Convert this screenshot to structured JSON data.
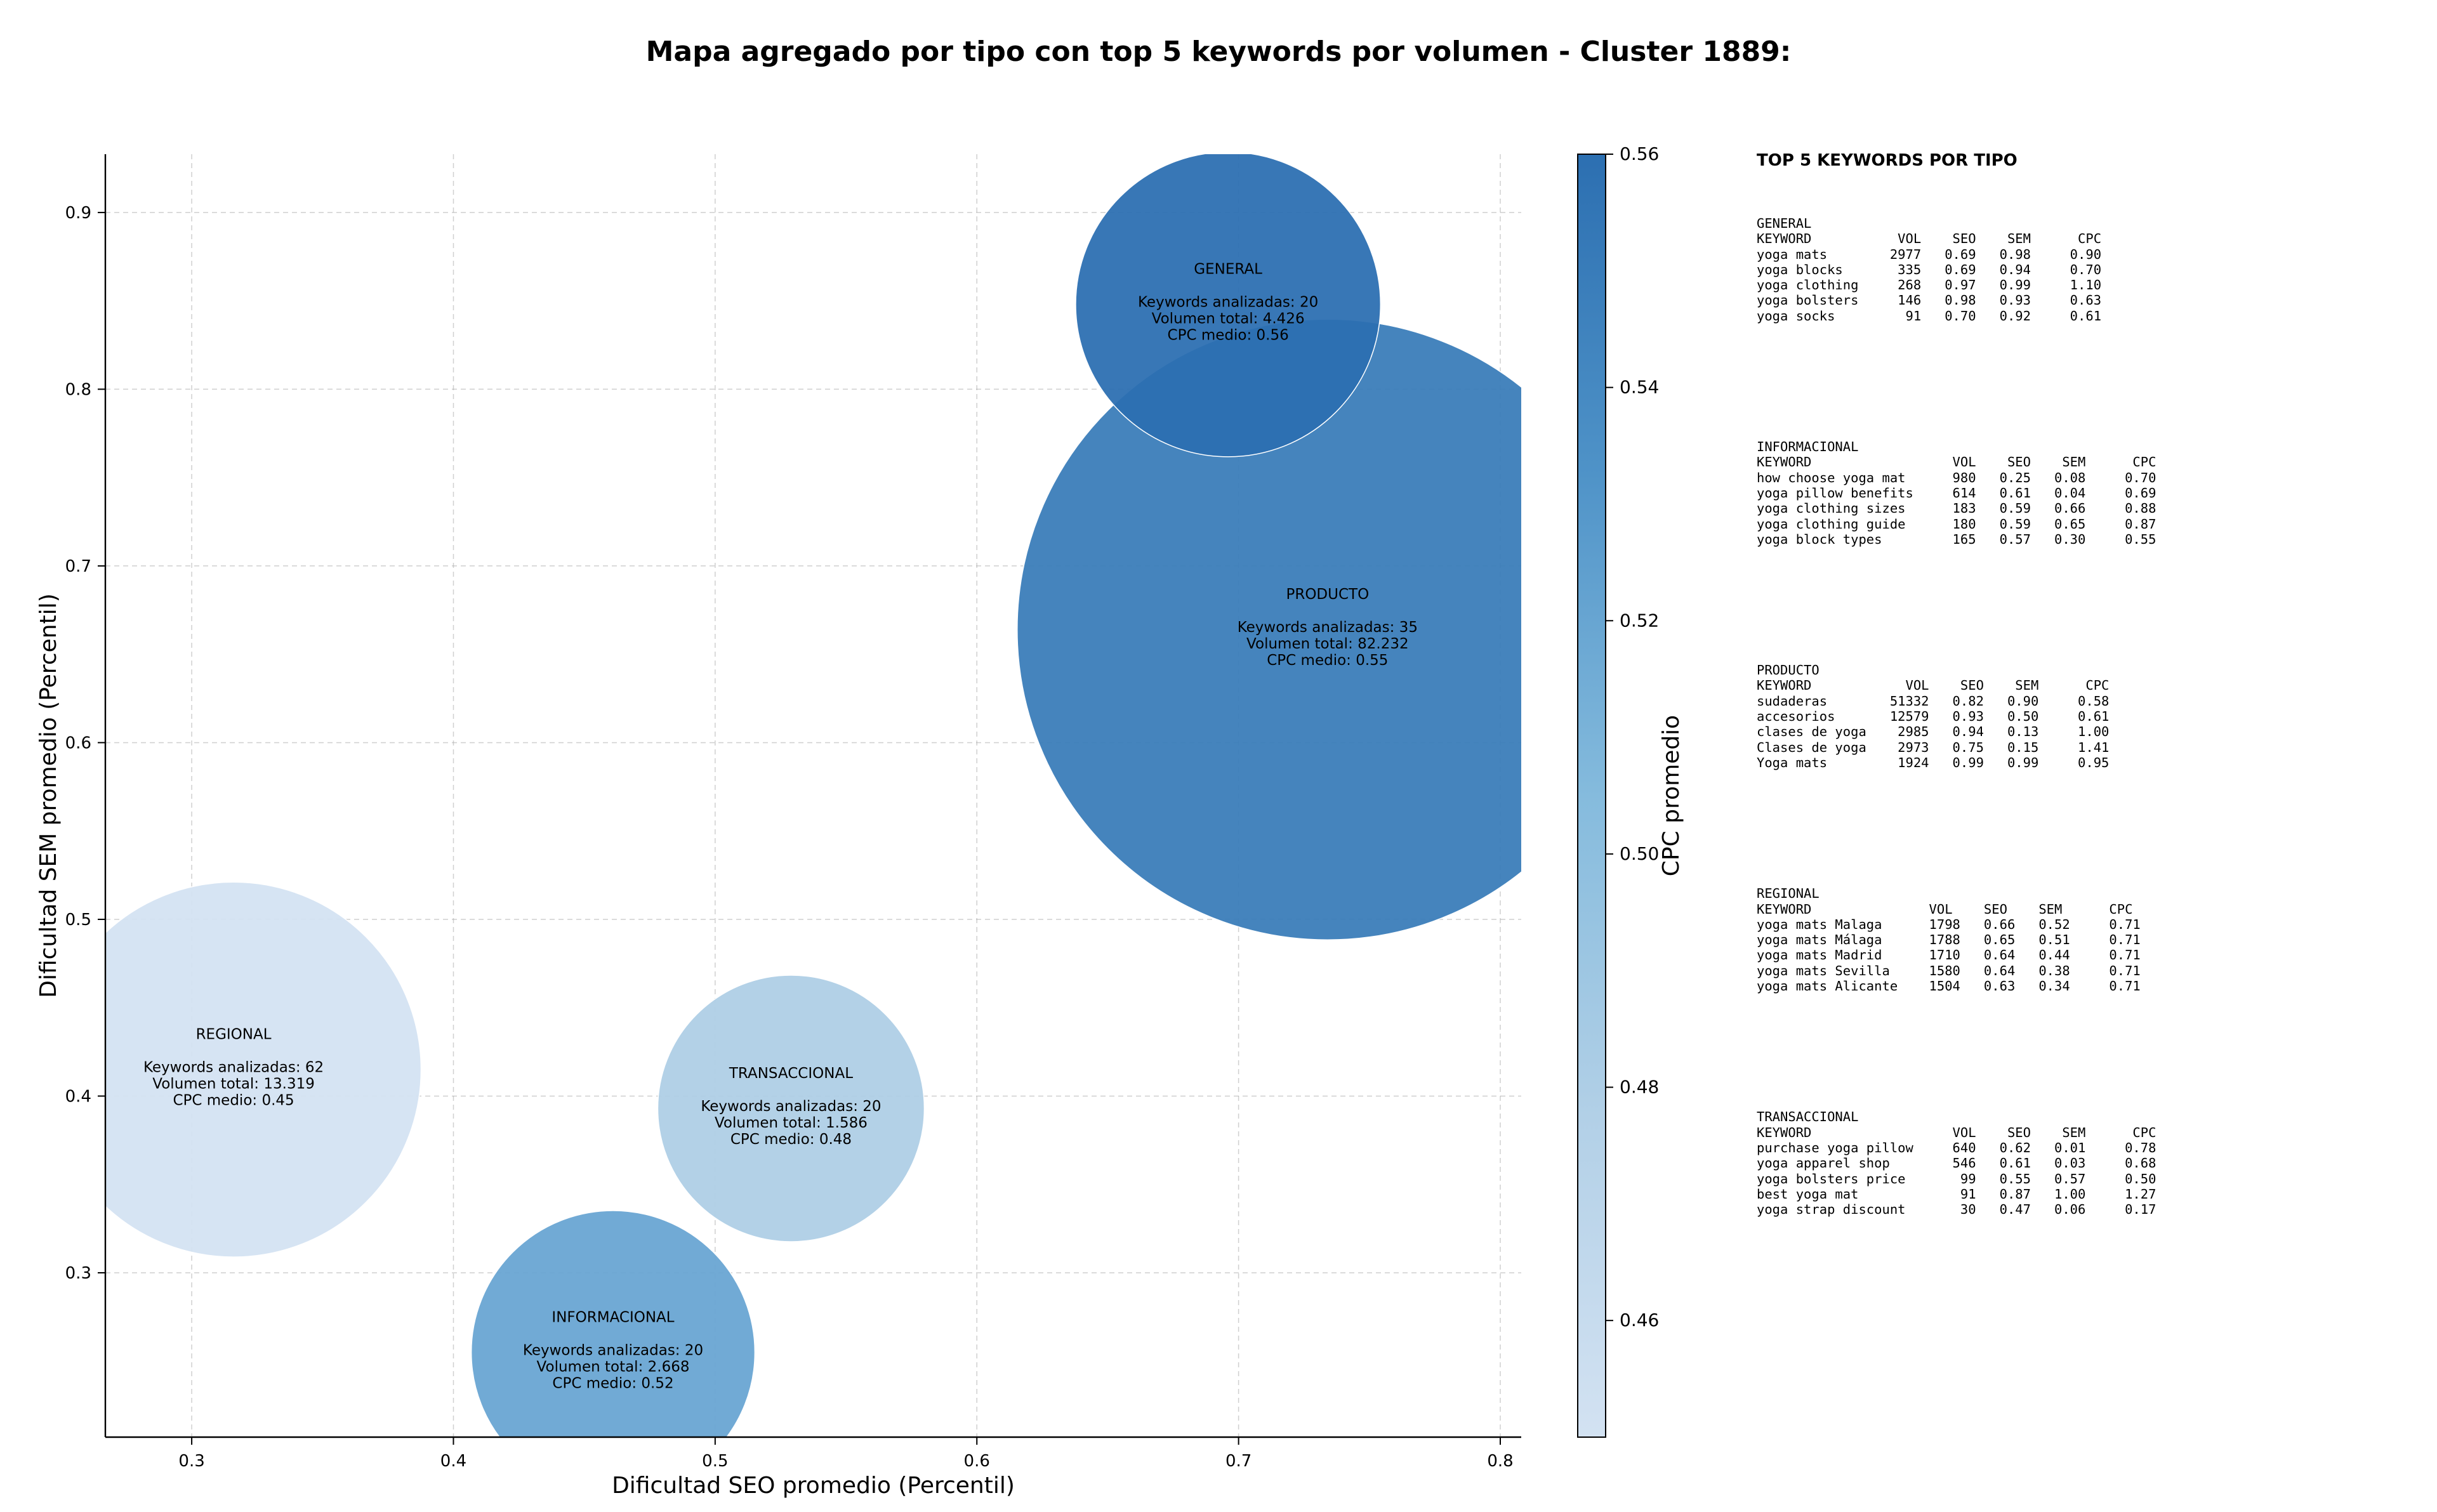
{
  "chart_data": {
    "type": "scatter",
    "title": "Mapa agregado por tipo con top 5 keywords por volumen - Cluster 1889:",
    "xlabel": "Dificultad SEO promedio (Percentil)",
    "ylabel": "Dificultad SEM promedio (Percentil)",
    "xlim": [
      0.267,
      0.808
    ],
    "ylim": [
      0.207,
      0.933
    ],
    "xticks": [
      "0.3",
      "0.4",
      "0.5",
      "0.6",
      "0.7",
      "0.8"
    ],
    "yticks": [
      "0.3",
      "0.4",
      "0.5",
      "0.6",
      "0.7",
      "0.8",
      "0.9"
    ],
    "grid": true,
    "colorbar": {
      "label": "CPC promedio",
      "range": [
        0.45,
        0.56
      ],
      "ticks": [
        "0.46",
        "0.48",
        "0.50",
        "0.52",
        "0.54",
        "0.56"
      ]
    },
    "bubbles": [
      {
        "name": "GENERAL",
        "seo": 0.696,
        "sem": 0.848,
        "keywords_line": "Keywords analizadas: 20",
        "volume_line": "Volumen total: 4.426",
        "cpc_line": "CPC medio: 0.56",
        "cpc": 0.56,
        "volume": 4426
      },
      {
        "name": "PRODUCTO",
        "seo": 0.734,
        "sem": 0.664,
        "keywords_line": "Keywords analizadas: 35",
        "volume_line": "Volumen total: 82.232",
        "cpc_line": "CPC medio: 0.55",
        "cpc": 0.55,
        "volume": 82232
      },
      {
        "name": "REGIONAL",
        "seo": 0.316,
        "sem": 0.415,
        "keywords_line": "Keywords analizadas: 62",
        "volume_line": "Volumen total: 13.319",
        "cpc_line": "CPC medio: 0.45",
        "cpc": 0.45,
        "volume": 13319
      },
      {
        "name": "TRANSACCIONAL",
        "seo": 0.529,
        "sem": 0.393,
        "keywords_line": "Keywords analizadas: 20",
        "volume_line": "Volumen total: 1.586",
        "cpc_line": "CPC medio: 0.48",
        "cpc": 0.48,
        "volume": 1586
      },
      {
        "name": "INFORMACIONAL",
        "seo": 0.461,
        "sem": 0.255,
        "keywords_line": "Keywords analizadas: 20",
        "volume_line": "Volumen total: 2.668",
        "cpc_line": "CPC medio: 0.52",
        "cpc": 0.52,
        "volume": 2668
      }
    ]
  },
  "right_panel": {
    "title": "TOP 5 KEYWORDS POR TIPO",
    "blocks": [
      {
        "type": "GENERAL",
        "header": "KEYWORD           VOL    SEO    SEM      CPC",
        "rows": [
          "yoga mats        2977   0.69   0.98     0.90",
          "yoga blocks       335   0.69   0.94     0.70",
          "yoga clothing     268   0.97   0.99     1.10",
          "yoga bolsters     146   0.98   0.93     0.63",
          "yoga socks         91   0.70   0.92     0.61"
        ]
      },
      {
        "type": "INFORMACIONAL",
        "header": "KEYWORD                  VOL    SEO    SEM      CPC",
        "rows": [
          "how choose yoga mat      980   0.25   0.08     0.70",
          "yoga pillow benefits     614   0.61   0.04     0.69",
          "yoga clothing sizes      183   0.59   0.66     0.88",
          "yoga clothing guide      180   0.59   0.65     0.87",
          "yoga block types         165   0.57   0.30     0.55"
        ]
      },
      {
        "type": "PRODUCTO",
        "header": "KEYWORD            VOL    SEO    SEM      CPC",
        "rows": [
          "sudaderas        51332   0.82   0.90     0.58",
          "accesorios       12579   0.93   0.50     0.61",
          "clases de yoga    2985   0.94   0.13     1.00",
          "Clases de yoga    2973   0.75   0.15     1.41",
          "Yoga mats         1924   0.99   0.99     0.95"
        ]
      },
      {
        "type": "REGIONAL",
        "header": "KEYWORD               VOL    SEO    SEM      CPC",
        "rows": [
          "yoga mats Malaga      1798   0.66   0.52     0.71",
          "yoga mats Málaga      1788   0.65   0.51     0.71",
          "yoga mats Madrid      1710   0.64   0.44     0.71",
          "yoga mats Sevilla     1580   0.64   0.38     0.71",
          "yoga mats Alicante    1504   0.63   0.34     0.71"
        ]
      },
      {
        "type": "TRANSACCIONAL",
        "header": "KEYWORD                  VOL    SEO    SEM      CPC",
        "rows": [
          "purchase yoga pillow     640   0.62   0.01     0.78",
          "yoga apparel shop        546   0.61   0.03     0.68",
          "yoga bolsters price       99   0.55   0.57     0.50",
          "best yoga mat             91   0.87   1.00     1.27",
          "yoga strap discount       30   0.47   0.06     0.17"
        ]
      }
    ]
  }
}
